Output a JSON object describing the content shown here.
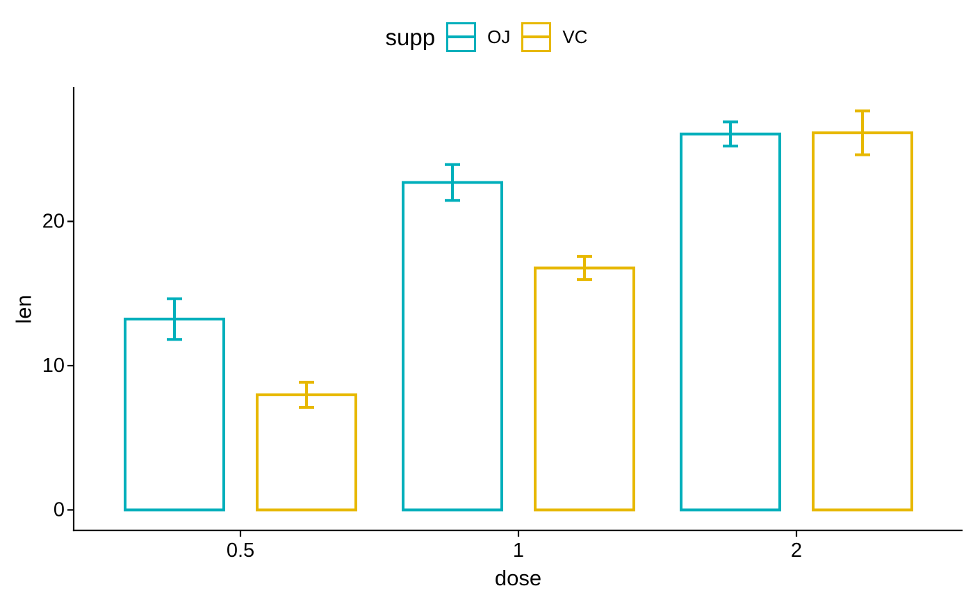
{
  "legend": {
    "title": "supp",
    "entries": [
      {
        "label": "OJ",
        "color": "#00AFBB"
      },
      {
        "label": "VC",
        "color": "#E7B800"
      }
    ]
  },
  "chart_data": {
    "type": "bar",
    "title": "",
    "xlabel": "dose",
    "ylabel": "len",
    "categories": [
      "0.5",
      "1",
      "2"
    ],
    "series": [
      {
        "name": "OJ",
        "color": "#00AFBB",
        "values": [
          13.23,
          22.7,
          26.06
        ],
        "se": [
          1.41,
          1.24,
          0.84
        ]
      },
      {
        "name": "VC",
        "color": "#E7B800",
        "values": [
          7.98,
          16.77,
          26.14
        ],
        "se": [
          0.87,
          0.8,
          1.52
        ]
      }
    ],
    "error_bar_type": "mean ± se",
    "yticks": [
      0,
      10,
      20
    ],
    "ytick_labels": [
      "0",
      "10",
      "20"
    ],
    "ylim": [
      0,
      29.3
    ],
    "legend_position": "top",
    "grid": false,
    "bar_style": "outline-only",
    "axis_color": "#000000",
    "text_color": "#000000",
    "background": "#FFFFFF"
  }
}
